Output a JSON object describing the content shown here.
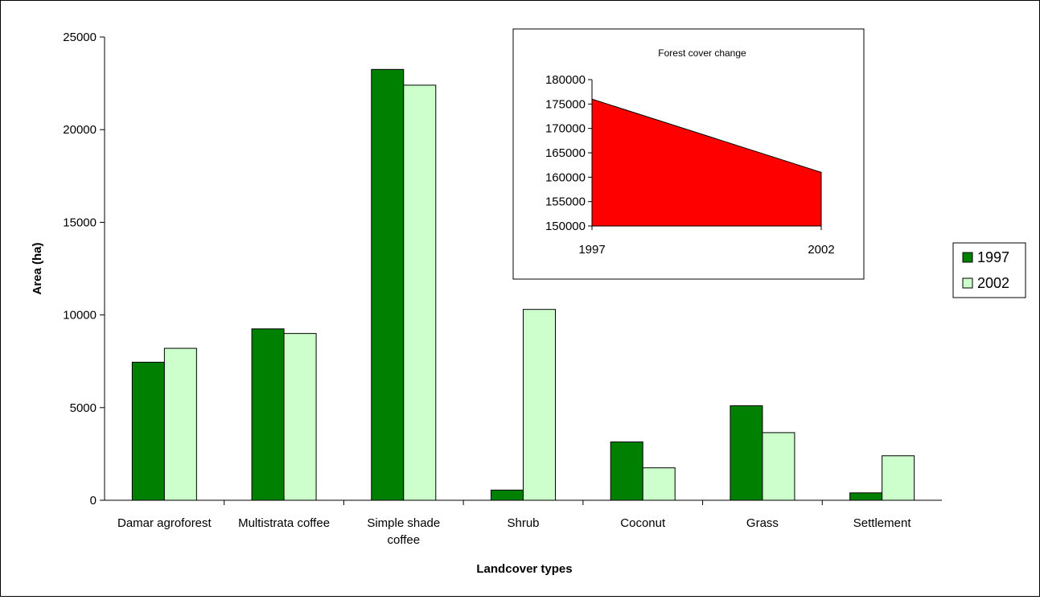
{
  "main_chart": {
    "type": "bar",
    "xlabel": "Landcover types",
    "ylabel": "Area (ha)",
    "ylim": [
      0,
      25000
    ],
    "yticks": [
      0,
      5000,
      10000,
      15000,
      20000,
      25000
    ],
    "categories": [
      [
        "Damar agroforest"
      ],
      [
        "Multistrata coffee"
      ],
      [
        "Simple shade",
        "coffee"
      ],
      [
        "Shrub"
      ],
      [
        "Coconut"
      ],
      [
        "Grass"
      ],
      [
        "Settlement"
      ]
    ],
    "series": [
      {
        "name": "1997",
        "color": "#008000",
        "values": [
          7450,
          9250,
          23250,
          550,
          3150,
          5100,
          400
        ]
      },
      {
        "name": "2002",
        "color": "#ccffcc",
        "values": [
          8200,
          9000,
          22400,
          10300,
          1750,
          3650,
          2400
        ]
      }
    ],
    "grid": false,
    "legend": "right"
  },
  "chart_data": [
    {
      "type": "bar",
      "title": "",
      "xlabel": "Landcover types",
      "ylabel": "Area (ha)",
      "ylim": [
        0,
        25000
      ],
      "categories": [
        "Damar agroforest",
        "Multistrata coffee",
        "Simple shade coffee",
        "Shrub",
        "Coconut",
        "Grass",
        "Settlement"
      ],
      "series": [
        {
          "name": "1997",
          "values": [
            7450,
            9250,
            23250,
            550,
            3150,
            5100,
            400
          ]
        },
        {
          "name": "2002",
          "values": [
            8200,
            9000,
            22400,
            10300,
            1750,
            3650,
            2400
          ]
        }
      ],
      "legend": "right"
    },
    {
      "type": "area",
      "title": "Forest cover change",
      "x": [
        "1997",
        "2002"
      ],
      "values": [
        176000,
        161000
      ],
      "ylim": [
        150000,
        180000
      ],
      "legend": "none"
    }
  ],
  "inset_chart": {
    "type": "area",
    "title": "Forest cover change",
    "x": [
      "1997",
      "2002"
    ],
    "values": [
      176000,
      161000
    ],
    "ylim": [
      150000,
      180000
    ],
    "yticks": [
      150000,
      155000,
      160000,
      165000,
      170000,
      175000,
      180000
    ],
    "color": "#ff0000"
  },
  "legend": {
    "items": [
      {
        "label": "1997",
        "color": "#008000"
      },
      {
        "label": "2002",
        "color": "#ccffcc"
      }
    ]
  }
}
